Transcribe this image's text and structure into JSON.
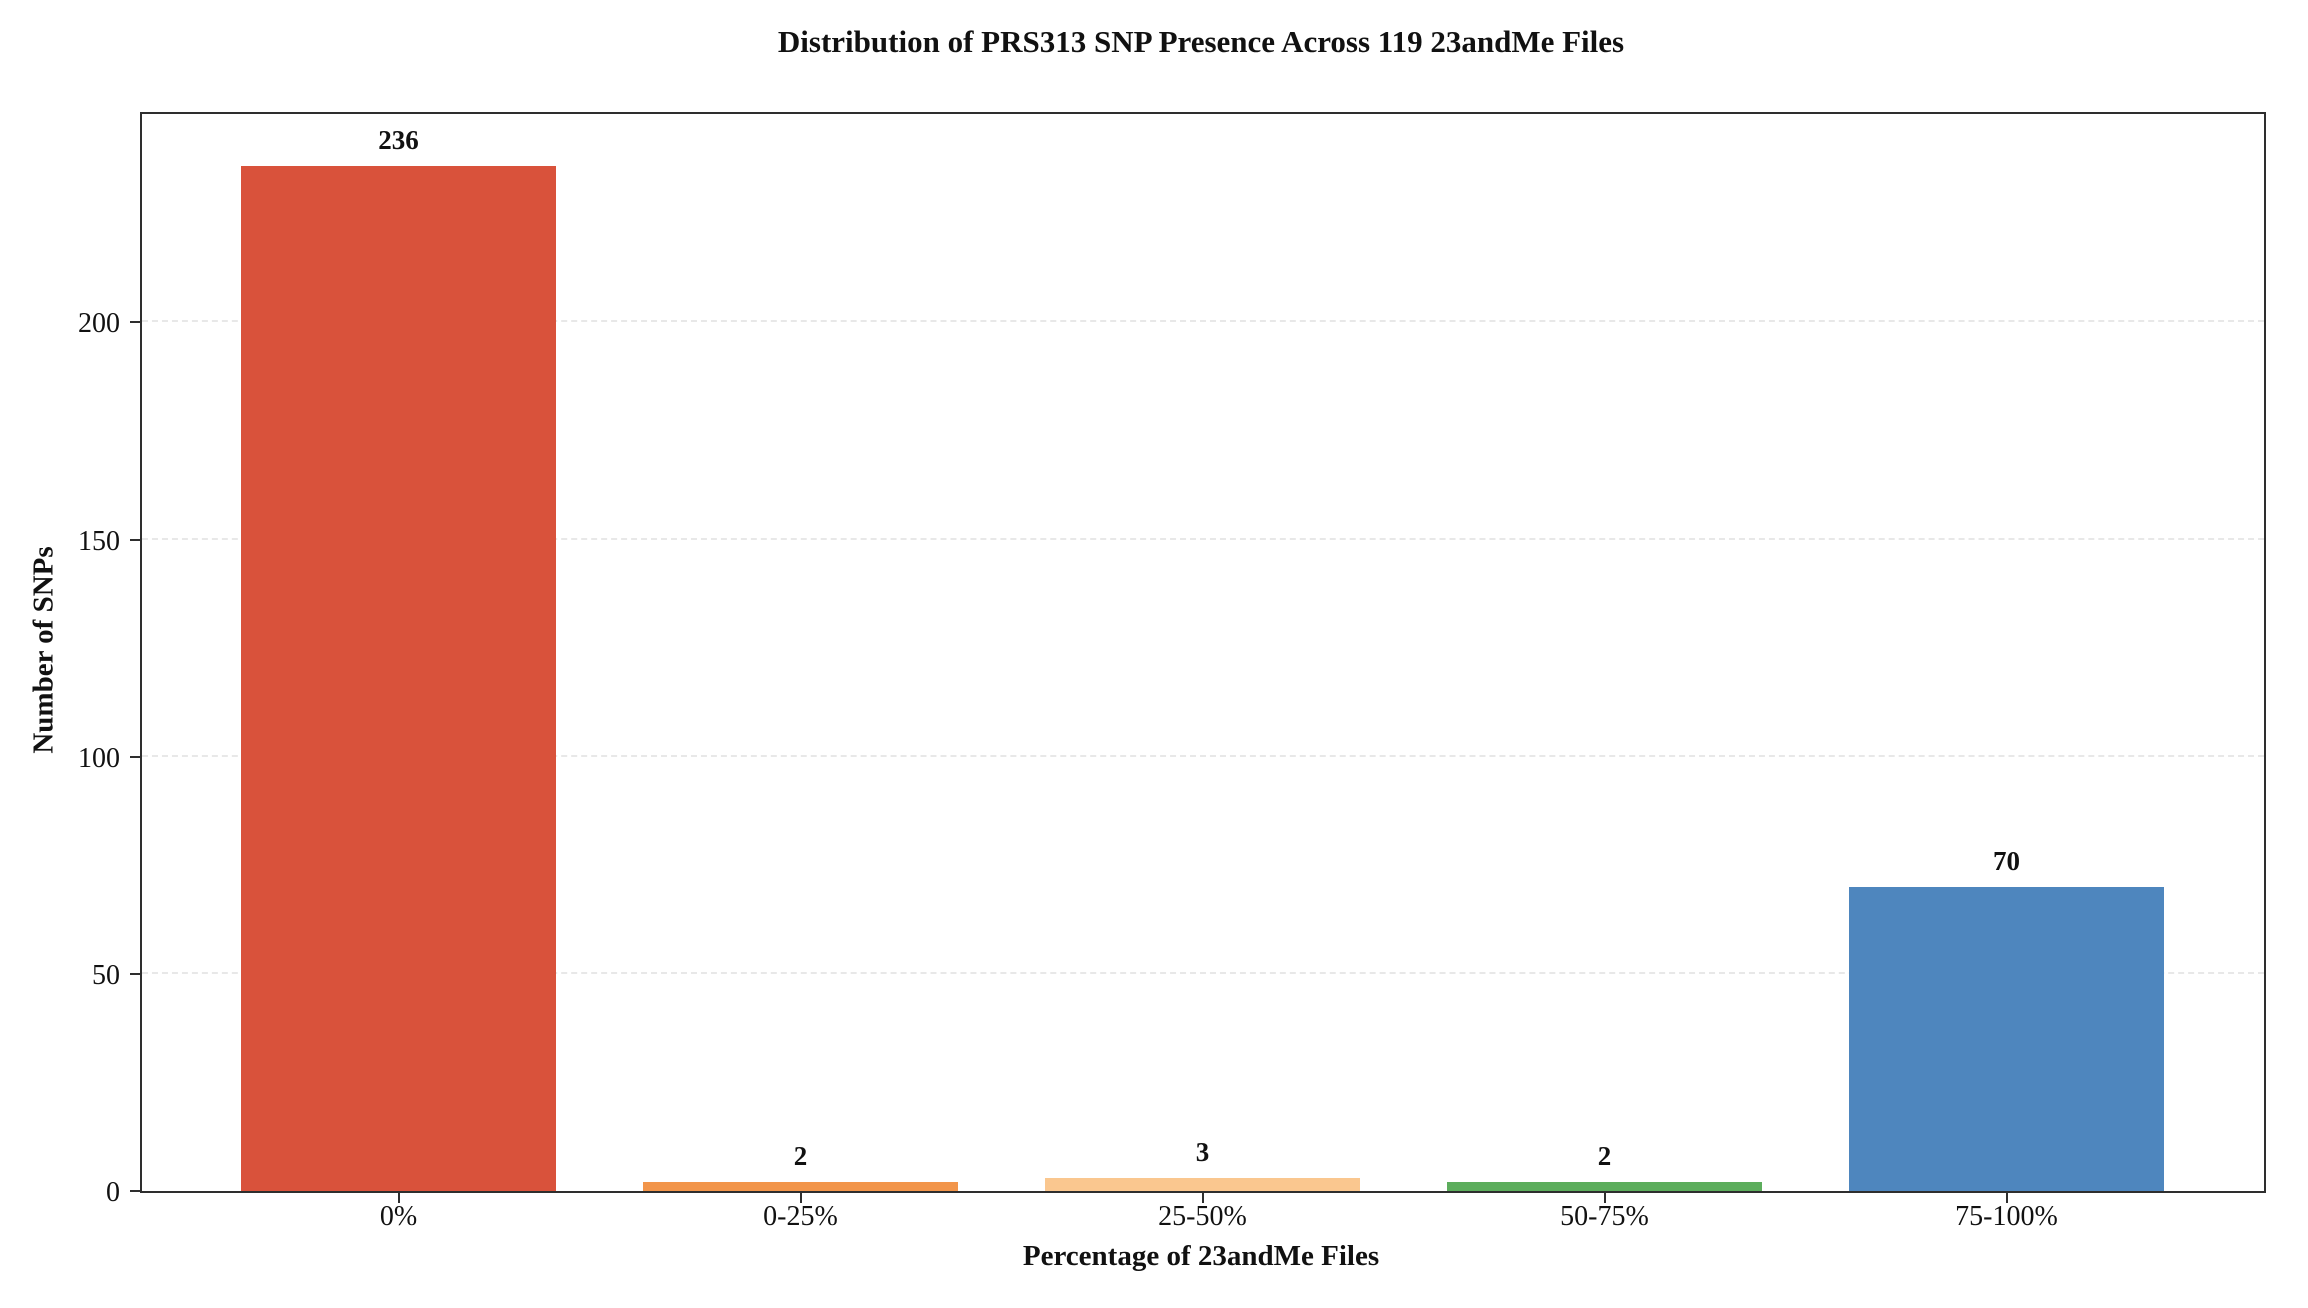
{
  "chart_data": {
    "type": "bar",
    "title": "Distribution of PRS313 SNP Presence Across 119 23andMe Files",
    "xlabel": "Percentage of 23andMe Files",
    "ylabel": "Number of SNPs",
    "categories": [
      "0%",
      "0-25%",
      "25-50%",
      "50-75%",
      "75-100%"
    ],
    "values": [
      236,
      2,
      3,
      2,
      70
    ],
    "value_labels": [
      "236",
      "2",
      "3",
      "2",
      "70"
    ],
    "bar_colors": [
      "#d9523b",
      "#f2954a",
      "#fac78f",
      "#5cad5c",
      "#4e86be"
    ],
    "yticks": [
      0,
      50,
      100,
      150,
      200
    ],
    "ylim": [
      0,
      248
    ],
    "grid": "horizontal-dashed",
    "legend": "none"
  },
  "colors": {
    "background": "#ffffff",
    "spine": "#2e2e2e",
    "grid": "#e8e8e8",
    "text": "#111111"
  }
}
